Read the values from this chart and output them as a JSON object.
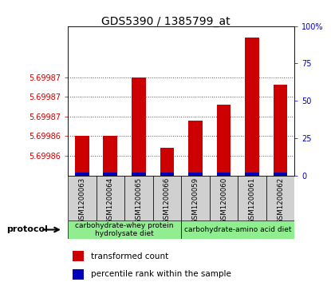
{
  "title": "GDS5390 / 1385799_at",
  "samples": [
    "GSM1200063",
    "GSM1200064",
    "GSM1200065",
    "GSM1200066",
    "GSM1200059",
    "GSM1200060",
    "GSM1200061",
    "GSM1200062"
  ],
  "red_vals": [
    5.69986,
    5.69986,
    5.699875,
    5.699857,
    5.699864,
    5.699868,
    5.699885,
    5.699873
  ],
  "blue_pct": [
    1,
    1,
    1,
    1,
    1,
    1,
    1,
    1
  ],
  "y_min": 5.69985,
  "y_max": 5.699888,
  "ytick_positions": [
    5.699855,
    5.69986,
    5.699865,
    5.69987,
    5.699875
  ],
  "ytick_labels": [
    "5.69986",
    "5.69986",
    "5.69987",
    "5.69987",
    "5.69987"
  ],
  "right_yticks": [
    0,
    25,
    50,
    75,
    100
  ],
  "right_yticklabels": [
    "0",
    "25",
    "50",
    "75",
    "100%"
  ],
  "group1_label": "carbohydrate-whey protein\nhydrolysate diet",
  "group2_label": "carbohydrate-amino acid diet",
  "group_bg_color": "#90EE90",
  "sample_bg_color": "#d0d0d0",
  "bar_color_red": "#cc0000",
  "bar_color_blue": "#0000bb",
  "legend_red": "transformed count",
  "legend_blue": "percentile rank within the sample",
  "left_color": "#cc0000",
  "right_color": "#0000cc"
}
